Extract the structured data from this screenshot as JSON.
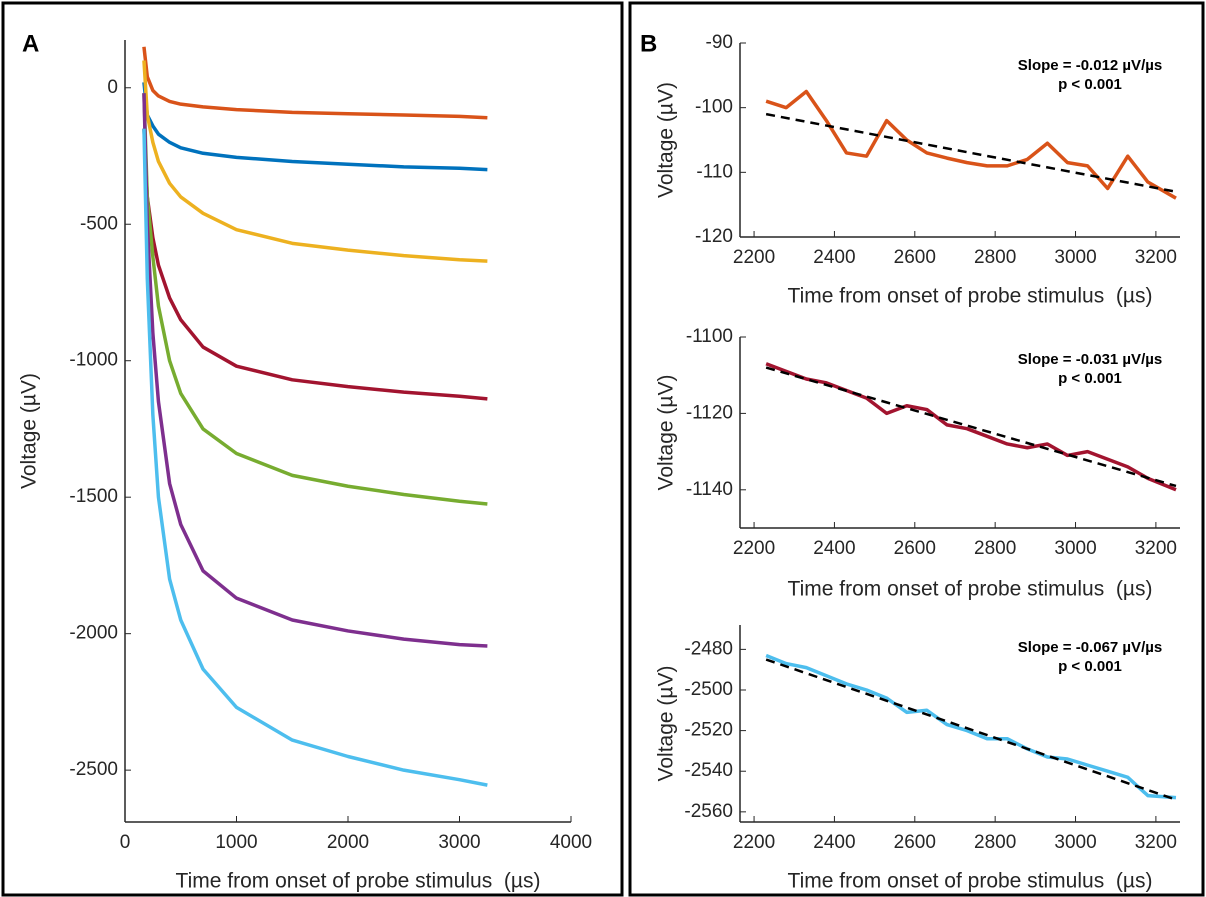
{
  "panel_labels": [
    "A",
    "B"
  ],
  "chart_data": [
    {
      "type": "line",
      "xlabel": "Time from onset of probe stimulus  (µs)",
      "ylabel": "Voltage (µV)",
      "xlim": [
        0,
        4000
      ],
      "ylim": [
        -2690,
        175
      ],
      "xticks": [
        0,
        1000,
        2000,
        3000,
        4000
      ],
      "yticks": [
        -2500,
        -2000,
        -1500,
        -1000,
        -500,
        0
      ],
      "x": [
        170,
        200,
        250,
        300,
        400,
        500,
        700,
        1000,
        1500,
        2000,
        2500,
        3000,
        3250
      ],
      "series": [
        {
          "color": "#D95319",
          "values": [
            150,
            40,
            -10,
            -30,
            -50,
            -60,
            -70,
            -80,
            -90,
            -95,
            -100,
            -105,
            -110
          ]
        },
        {
          "color": "#0072BD",
          "values": [
            20,
            -100,
            -140,
            -170,
            -200,
            -220,
            -240,
            -255,
            -270,
            -280,
            -290,
            -295,
            -300
          ]
        },
        {
          "color": "#EDB120",
          "values": [
            100,
            -100,
            -200,
            -270,
            -350,
            -400,
            -460,
            -520,
            -570,
            -595,
            -615,
            -630,
            -635
          ]
        },
        {
          "color": "#A2142F",
          "values": [
            -150,
            -400,
            -550,
            -650,
            -770,
            -850,
            -950,
            -1020,
            -1070,
            -1095,
            -1115,
            -1130,
            -1140
          ]
        },
        {
          "color": "#77AC30",
          "values": [
            -20,
            -400,
            -620,
            -800,
            -1000,
            -1120,
            -1250,
            -1340,
            -1420,
            -1460,
            -1490,
            -1515,
            -1525
          ]
        },
        {
          "color": "#7E2F8E",
          "values": [
            -20,
            -500,
            -900,
            -1150,
            -1450,
            -1600,
            -1770,
            -1870,
            -1950,
            -1990,
            -2020,
            -2040,
            -2045
          ]
        },
        {
          "color": "#4DBEEE",
          "values": [
            -150,
            -700,
            -1200,
            -1500,
            -1800,
            -1950,
            -2130,
            -2270,
            -2390,
            -2450,
            -2500,
            -2535,
            -2555
          ]
        }
      ]
    },
    {
      "type": "line",
      "xlabel": "Time from onset of probe stimulus  (µs)",
      "ylabel": "Voltage (µV)",
      "annotations": [
        "Slope = -0.012 µV/µs",
        "p < 0.001"
      ],
      "xlim": [
        2165,
        3260
      ],
      "ylim": [
        -120,
        -90
      ],
      "xticks": [
        2200,
        2400,
        2600,
        2800,
        3000,
        3200
      ],
      "yticks": [
        -120,
        -110,
        -100,
        -90
      ],
      "x": [
        2230,
        2280,
        2330,
        2380,
        2430,
        2480,
        2530,
        2580,
        2630,
        2680,
        2730,
        2780,
        2830,
        2880,
        2930,
        2980,
        3030,
        3080,
        3130,
        3180,
        3250
      ],
      "series": [
        {
          "color": "#D95319",
          "values": [
            -99,
            -100,
            -97.5,
            -102,
            -107,
            -107.5,
            -102,
            -105,
            -107,
            -107.8,
            -108.5,
            -109,
            -109,
            -108,
            -105.5,
            -108.5,
            -109,
            -112.5,
            -107.5,
            -111.5,
            -114
          ]
        },
        {
          "color": "#000000",
          "style": "dashed",
          "x": [
            2230,
            3250
          ],
          "values": [
            -101,
            -113
          ]
        }
      ]
    },
    {
      "type": "line",
      "xlabel": "Time from onset of probe stimulus  (µs)",
      "ylabel": "Voltage (µV)",
      "annotations": [
        "Slope = -0.031 µV/µs",
        "p < 0.001"
      ],
      "xlim": [
        2165,
        3260
      ],
      "ylim": [
        -1150,
        -1100
      ],
      "xticks": [
        2200,
        2400,
        2600,
        2800,
        3000,
        3200
      ],
      "yticks": [
        -1140,
        -1120,
        -1100
      ],
      "x": [
        2230,
        2280,
        2330,
        2380,
        2430,
        2480,
        2530,
        2580,
        2630,
        2680,
        2730,
        2780,
        2830,
        2880,
        2930,
        2980,
        3030,
        3080,
        3130,
        3180,
        3250
      ],
      "series": [
        {
          "color": "#A2142F",
          "values": [
            -1107,
            -1109,
            -1111,
            -1112,
            -1114,
            -1116,
            -1120,
            -1118,
            -1119,
            -1123,
            -1124,
            -1126,
            -1128,
            -1129,
            -1128,
            -1131,
            -1130,
            -1132,
            -1134,
            -1137,
            -1140
          ]
        },
        {
          "color": "#000000",
          "style": "dashed",
          "x": [
            2230,
            3250
          ],
          "values": [
            -1108,
            -1139
          ]
        }
      ]
    },
    {
      "type": "line",
      "xlabel": "Time from onset of probe stimulus  (µs)",
      "ylabel": "Voltage (µV)",
      "annotations": [
        "Slope = -0.067 µV/µs",
        "p < 0.001"
      ],
      "xlim": [
        2165,
        3260
      ],
      "ylim": [
        -2565,
        -2468
      ],
      "xticks": [
        2200,
        2400,
        2600,
        2800,
        3000,
        3200
      ],
      "yticks": [
        -2560,
        -2540,
        -2520,
        -2500,
        -2480
      ],
      "x": [
        2230,
        2280,
        2330,
        2380,
        2430,
        2480,
        2530,
        2580,
        2630,
        2680,
        2730,
        2780,
        2830,
        2880,
        2930,
        2980,
        3030,
        3080,
        3130,
        3180,
        3250
      ],
      "series": [
        {
          "color": "#4DBEEE",
          "values": [
            -2483,
            -2487,
            -2489,
            -2493,
            -2497,
            -2500,
            -2504,
            -2511,
            -2510,
            -2517,
            -2520,
            -2524,
            -2524,
            -2529,
            -2533,
            -2534,
            -2537,
            -2540,
            -2543,
            -2552,
            -2553
          ]
        },
        {
          "color": "#000000",
          "style": "dashed",
          "x": [
            2230,
            3250
          ],
          "values": [
            -2485,
            -2554
          ]
        }
      ]
    }
  ]
}
